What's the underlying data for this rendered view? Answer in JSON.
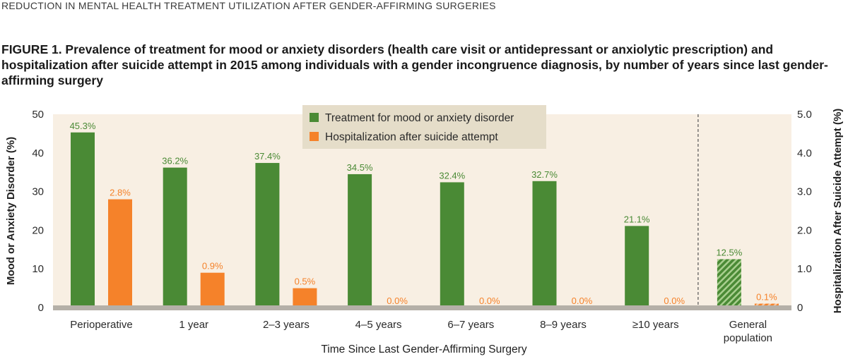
{
  "header": "REDUCTION IN MENTAL HEALTH TREATMENT UTILIZATION AFTER GENDER-AFFIRMING SURGERIES",
  "figure_title": "FIGURE 1.  Prevalence of treatment for mood or anxiety disorders (health care visit or antidepressant or anxiolytic prescription) and hospitalization after suicide attempt in 2015 among individuals with a gender incongruence diagnosis, by number of years since last gender-affirming surgery",
  "colors": {
    "treatment": "#4a8a35",
    "hospitalization": "#f5822a",
    "plot_background": "#f8efe3",
    "legend_background": "#e5ddc9",
    "baseline": "#b5b0a8"
  },
  "chart_data": {
    "type": "bar",
    "xlabel": "Time Since Last Gender-Affirming Surgery",
    "ylabel": "Mood or Anxiety Disorder (%)",
    "y2label": "Hospitalization After Suicide Attempt (%)",
    "ylim": [
      0,
      50
    ],
    "y2lim": [
      0,
      5
    ],
    "yticks": [
      "0",
      "10",
      "20",
      "30",
      "40",
      "50"
    ],
    "y2ticks": [
      "0",
      "1.0",
      "2.0",
      "3.0",
      "4.0",
      "5.0"
    ],
    "categories": [
      "Perioperative",
      "1 year",
      "2–3 years",
      "4–5 years",
      "6–7 years",
      "8–9 years",
      "≥10 years",
      "General\npopulation"
    ],
    "hatched_category": "General\npopulation",
    "separator_before_category": "General\npopulation",
    "legend_position": "top-center",
    "series": [
      {
        "name": "Treatment for mood or anxiety disorder",
        "axis": "left",
        "values": [
          45.3,
          36.2,
          37.4,
          34.5,
          32.4,
          32.7,
          21.1,
          12.5
        ],
        "labels": [
          "45.3%",
          "36.2%",
          "37.4%",
          "34.5%",
          "32.4%",
          "32.7%",
          "21.1%",
          "12.5%"
        ]
      },
      {
        "name": "Hospitalization after suicide attempt",
        "axis": "right",
        "values": [
          2.8,
          0.9,
          0.5,
          0.0,
          0.0,
          0.0,
          0.0,
          0.1
        ],
        "labels": [
          "2.8%",
          "0.9%",
          "0.5%",
          "0.0%",
          "0.0%",
          "0.0%",
          "0.0%",
          "0.1%"
        ]
      }
    ]
  }
}
